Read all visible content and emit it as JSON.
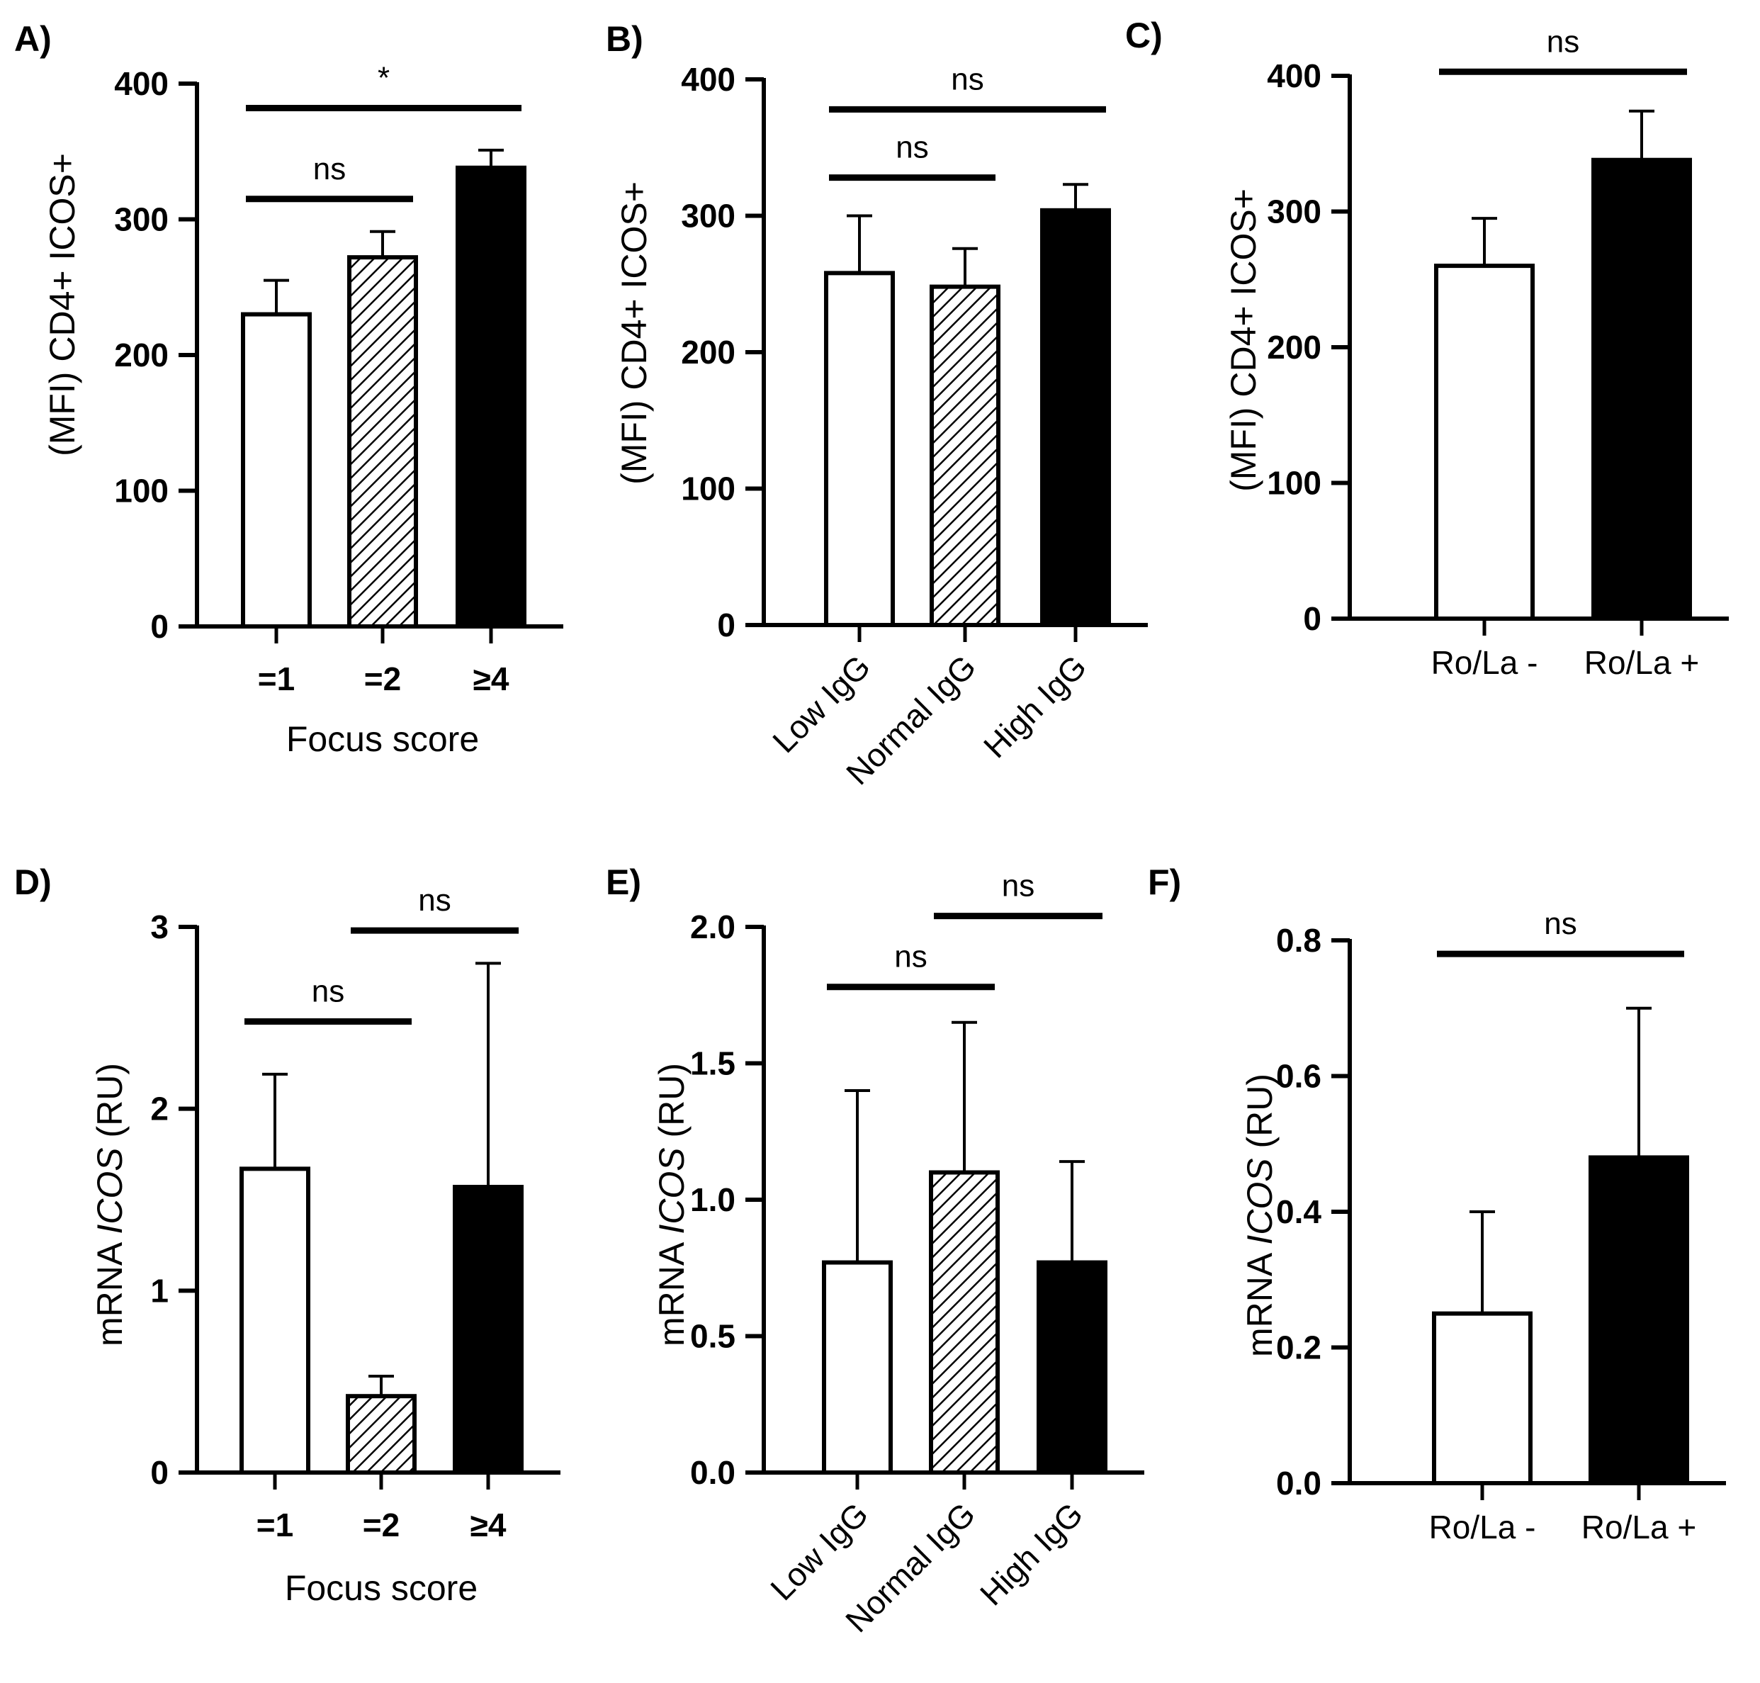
{
  "chart_data": [
    {
      "panel": "A)",
      "type": "bar",
      "ylabel": "(MFI) CD4+ ICOS+",
      "ylim": [
        0,
        400
      ],
      "yticks": [
        "0",
        "100",
        "200",
        "300",
        "400"
      ],
      "ytick_values": [
        0,
        100,
        200,
        300,
        400
      ],
      "categories": [
        "=1",
        "=2",
        "≥4"
      ],
      "cat_style": "bold",
      "cat_rotate": false,
      "xlabel": "Focus score",
      "values": [
        230,
        272,
        338
      ],
      "errors": [
        25,
        19,
        13
      ],
      "fills": [
        "white",
        "hatch",
        "black"
      ],
      "comparisons": [
        {
          "from": 0,
          "to": 2,
          "label": "*",
          "y": 382
        },
        {
          "from": 0,
          "to": 1,
          "label": "ns",
          "y": 315
        }
      ]
    },
    {
      "panel": "B)",
      "type": "bar",
      "ylabel": "(MFI) CD4+ ICOS+",
      "ylim": [
        0,
        400
      ],
      "yticks": [
        "0",
        "100",
        "200",
        "300",
        "400"
      ],
      "ytick_values": [
        0,
        100,
        200,
        300,
        400
      ],
      "categories": [
        "Low IgG",
        "Normal IgG",
        "High IgG"
      ],
      "cat_style": "plain",
      "cat_rotate": true,
      "xlabel": "",
      "values": [
        258,
        248,
        304
      ],
      "errors": [
        42,
        28,
        19
      ],
      "fills": [
        "white",
        "hatch",
        "black"
      ],
      "comparisons": [
        {
          "from": 0,
          "to": 2,
          "label": "ns",
          "y": 378
        },
        {
          "from": 0,
          "to": 1,
          "label": "ns",
          "y": 328
        }
      ]
    },
    {
      "panel": "C)",
      "type": "bar",
      "ylabel": "(MFI) CD4+ ICOS+",
      "ylim": [
        0,
        400
      ],
      "yticks": [
        "0",
        "100",
        "200",
        "300",
        "400"
      ],
      "ytick_values": [
        0,
        100,
        200,
        300,
        400
      ],
      "categories": [
        "Ro/La -",
        "Ro/La +"
      ],
      "cat_style": "plain",
      "cat_rotate": false,
      "xlabel": "",
      "values": [
        260,
        338
      ],
      "errors": [
        35,
        36
      ],
      "fills": [
        "white",
        "black"
      ],
      "comparisons": [
        {
          "from": 0,
          "to": 1,
          "label": "ns",
          "y": 403
        }
      ]
    },
    {
      "panel": "D)",
      "type": "bar",
      "ylabel": "mRNA ICOS  (RU)",
      "ylabel_parts": [
        "mRNA ",
        "ICOS",
        "  (RU)"
      ],
      "ylim": [
        0,
        3
      ],
      "yticks": [
        "0",
        "1",
        "2",
        "3"
      ],
      "ytick_values": [
        0,
        1,
        2,
        3
      ],
      "categories": [
        "=1",
        "=2",
        "≥4"
      ],
      "cat_style": "bold",
      "cat_rotate": false,
      "xlabel": "Focus score",
      "values": [
        1.67,
        0.42,
        1.57
      ],
      "errors": [
        0.52,
        0.11,
        1.23
      ],
      "fills": [
        "white",
        "hatch",
        "black"
      ],
      "comparisons": [
        {
          "from": 0,
          "to": 1,
          "label": "ns",
          "y": 2.48
        },
        {
          "from": 1,
          "to": 2,
          "label": "ns",
          "y": 2.98
        }
      ]
    },
    {
      "panel": "E)",
      "type": "bar",
      "ylabel": "mRNA ICOS  (RU)",
      "ylabel_parts": [
        "mRNA ",
        "ICOS",
        "  (RU)"
      ],
      "ylim": [
        0,
        2
      ],
      "yticks": [
        "0.0",
        "0.5",
        "1.0",
        "1.5",
        "2.0"
      ],
      "ytick_values": [
        0,
        0.5,
        1.0,
        1.5,
        2.0
      ],
      "categories": [
        "Low IgG",
        "Normal IgG",
        "High IgG"
      ],
      "cat_style": "plain",
      "cat_rotate": true,
      "xlabel": "",
      "values": [
        0.77,
        1.1,
        0.77
      ],
      "errors": [
        0.63,
        0.55,
        0.37
      ],
      "fills": [
        "white",
        "hatch",
        "black"
      ],
      "comparisons": [
        {
          "from": 0,
          "to": 1,
          "label": "ns",
          "y": 1.78
        },
        {
          "from": 1,
          "to": 2,
          "label": "ns",
          "y": 2.04
        }
      ]
    },
    {
      "panel": "F)",
      "type": "bar",
      "ylabel": "mRNA ICOS  (RU)",
      "ylabel_parts": [
        "mRNA ",
        "ICOS",
        "  (RU)"
      ],
      "ylim": [
        0,
        0.8
      ],
      "yticks": [
        "0.0",
        "0.2",
        "0.4",
        "0.6",
        "0.8"
      ],
      "ytick_values": [
        0,
        0.2,
        0.4,
        0.6,
        0.8
      ],
      "categories": [
        "Ro/La -",
        "Ro/La +"
      ],
      "cat_style": "plain",
      "cat_rotate": false,
      "xlabel": "",
      "values": [
        0.25,
        0.48
      ],
      "errors": [
        0.15,
        0.22
      ],
      "fills": [
        "white",
        "black"
      ],
      "comparisons": [
        {
          "from": 0,
          "to": 1,
          "label": "ns",
          "y": 0.78
        }
      ]
    }
  ]
}
